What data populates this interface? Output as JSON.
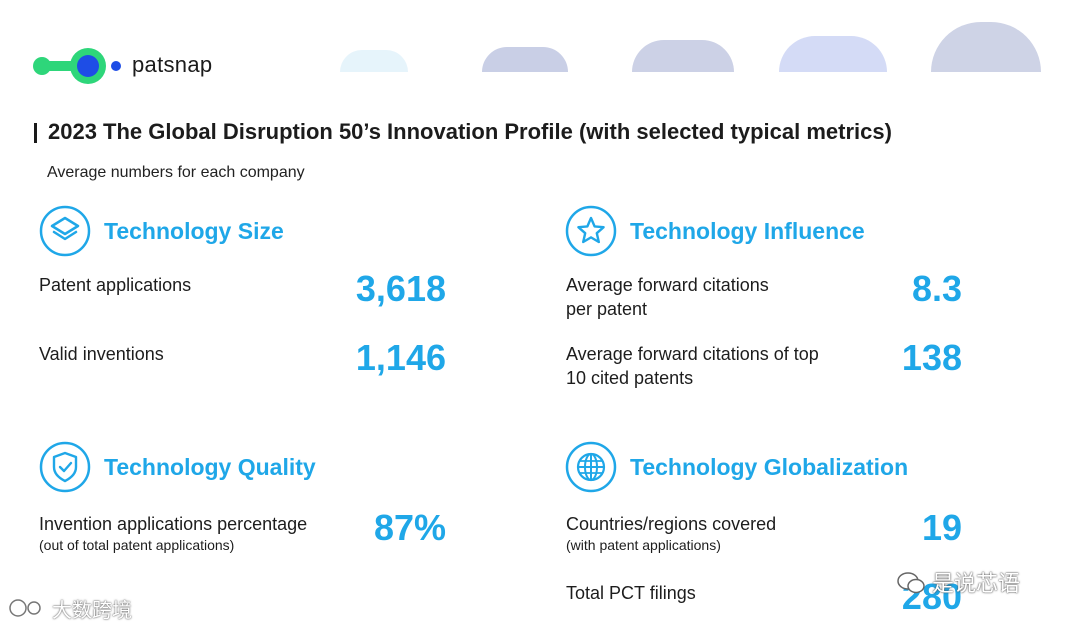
{
  "logo": {
    "text": "patsnap",
    "color_green": "#2ed67a",
    "color_blue": "#1e4de6"
  },
  "title": "2023 The Global Disruption 50’s Innovation Profile (with selected typical metrics)",
  "subtitle": "Average numbers for each company",
  "sections": {
    "size": {
      "title": "Technology Size",
      "icon": "layers-icon",
      "metrics": [
        {
          "label": "Patent applications",
          "value": "3,618"
        },
        {
          "label": "Valid inventions",
          "value": "1,146"
        }
      ]
    },
    "influence": {
      "title": "Technology Influence",
      "icon": "star-icon",
      "metrics": [
        {
          "label_line1": "Average forward citations",
          "label_line2": "per patent",
          "value": "8.3"
        },
        {
          "label_line1": "Average forward citations of top",
          "label_line2": "10 cited patents",
          "value": "138"
        }
      ]
    },
    "quality": {
      "title": "Technology Quality",
      "icon": "shield-check-icon",
      "metrics": [
        {
          "label": "Invention applications percentage",
          "sublabel": "(out of total patent applications)",
          "value": "87%"
        }
      ]
    },
    "globalization": {
      "title": "Technology Globalization",
      "icon": "globe-icon",
      "metrics": [
        {
          "label": "Countries/regions covered",
          "sublabel": "(with patent applications)",
          "value": "19"
        },
        {
          "label": "Total PCT filings",
          "value": "280"
        }
      ]
    }
  },
  "watermarks": {
    "right": "是说芯语",
    "left": "大数跨境"
  },
  "accent_color": "#1fa7e8"
}
